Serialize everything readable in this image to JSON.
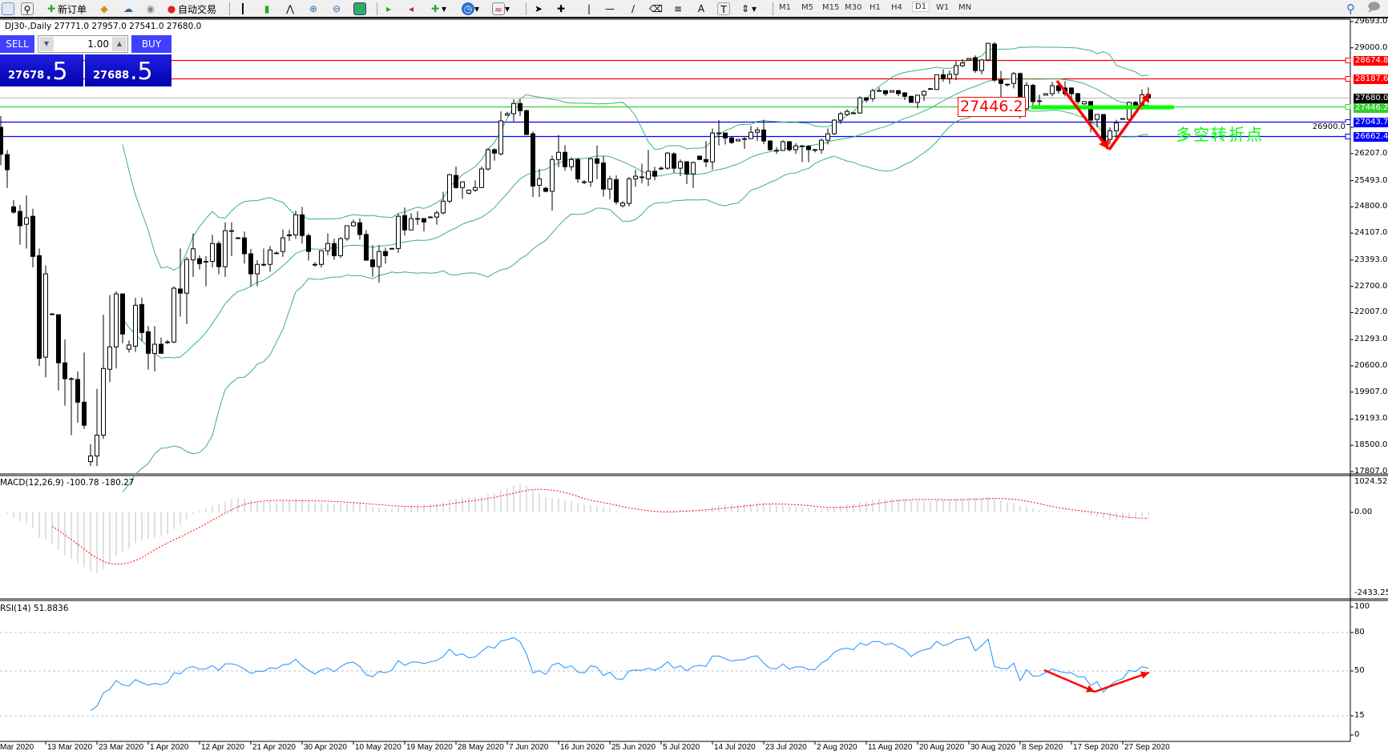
{
  "toolbar": {
    "new_order_label": "新订单",
    "auto_trade_label": "自动交易",
    "timeframes": [
      "M1",
      "M5",
      "M15",
      "M30",
      "H1",
      "H4",
      "D1",
      "W1",
      "MN"
    ],
    "active_timeframe": "D1"
  },
  "chart": {
    "header": "DJ30-,Daily  27771.0 27957.0 27541.0 27680.0",
    "macd_label": "MACD(12,26,9) -100.78 -180.27",
    "rsi_label": "RSI(14) 51.8836",
    "annotation_text": "多空转折点",
    "annotation_price": "27446.2",
    "annotation_color": "#00ff00"
  },
  "trade_panel": {
    "sell_label": "SELL",
    "buy_label": "BUY",
    "volume": "1.00",
    "sell_price_main": "27678",
    "sell_price_big": ".5",
    "buy_price_main": "27688",
    "buy_price_big": ".5"
  },
  "chart_data": {
    "type": "candlestick",
    "symbol": "DJ30-",
    "period": "Daily",
    "price_axis_ticks": [
      "29693.0",
      "29000.0",
      "26900.0",
      "26207.0",
      "25493.0",
      "24800.0",
      "24107.0",
      "23393.0",
      "22700.0",
      "22007.0",
      "21293.0",
      "20600.0",
      "19907.0",
      "19193.0",
      "18500.0",
      "17807.0"
    ],
    "ylim": [
      17807.0,
      29693.0
    ],
    "date_labels": [
      "Mar 2020",
      "13 Mar 2020",
      "23 Mar 2020",
      "1 Apr 2020",
      "12 Apr 2020",
      "21 Apr 2020",
      "30 Apr 2020",
      "10 May 2020",
      "19 May 2020",
      "28 May 2020",
      "7 Jun 2020",
      "16 Jun 2020",
      "25 Jun 2020",
      "5 Jul 2020",
      "14 Jul 2020",
      "23 Jul 2020",
      "2 Aug 2020",
      "11 Aug 2020",
      "20 Aug 2020",
      "30 Aug 2020",
      "8 Sep 2020",
      "17 Sep 2020",
      "27 Sep 2020"
    ],
    "ohlc": [
      [
        26900,
        27200,
        25900,
        26190
      ],
      [
        26180,
        26300,
        25300,
        25780
      ],
      [
        24800,
        24980,
        24620,
        24660
      ],
      [
        24680,
        24850,
        23800,
        24300
      ],
      [
        24340,
        25100,
        23700,
        24510
      ],
      [
        24550,
        24750,
        23200,
        23490
      ],
      [
        23510,
        23700,
        20600,
        20800
      ],
      [
        20830,
        23250,
        20300,
        23030
      ],
      [
        21970,
        22000,
        21940,
        21970
      ],
      [
        21950,
        21950,
        19950,
        20680
      ],
      [
        20680,
        21300,
        19550,
        20260
      ],
      [
        20260,
        20300,
        18770,
        20260
      ],
      [
        20240,
        20450,
        19100,
        19640
      ],
      [
        19640,
        20950,
        18930,
        19030
      ],
      [
        18070,
        18530,
        17950,
        18220
      ],
      [
        18220,
        19990,
        17950,
        18770
      ],
      [
        18770,
        21950,
        18670,
        20530
      ],
      [
        20510,
        22470,
        20170,
        21100
      ],
      [
        21100,
        22570,
        20530,
        22500
      ],
      [
        22500,
        22500,
        21200,
        21440
      ],
      [
        21040,
        21270,
        20950,
        21150
      ],
      [
        21120,
        22400,
        20970,
        22200
      ],
      [
        22220,
        22400,
        21250,
        21480
      ],
      [
        21500,
        21650,
        20500,
        20930
      ],
      [
        20930,
        21650,
        20450,
        21170
      ],
      [
        21170,
        21350,
        20930,
        20930
      ],
      [
        21230,
        21280,
        21180,
        21230
      ],
      [
        21230,
        22700,
        21200,
        22650
      ],
      [
        22630,
        23700,
        21900,
        22520
      ],
      [
        22520,
        23480,
        21700,
        23410
      ],
      [
        23400,
        24100,
        22950,
        23690
      ],
      [
        23430,
        23520,
        23150,
        23300
      ],
      [
        23360,
        23500,
        22700,
        23360
      ],
      [
        23360,
        24060,
        23200,
        23830
      ],
      [
        23830,
        23900,
        23020,
        23220
      ],
      [
        23220,
        24390,
        22950,
        24170
      ],
      [
        24170,
        24390,
        23500,
        24170
      ],
      [
        23980,
        24000,
        23950,
        23980
      ],
      [
        23980,
        24150,
        23300,
        23560
      ],
      [
        23560,
        23690,
        22700,
        23030
      ],
      [
        23030,
        23390,
        22700,
        23280
      ],
      [
        23280,
        23700,
        23230,
        23280
      ],
      [
        23280,
        23760,
        23080,
        23660
      ],
      [
        23580,
        23620,
        23560,
        23580
      ],
      [
        23620,
        24200,
        23480,
        23980
      ],
      [
        24040,
        24200,
        23900,
        24060
      ],
      [
        24060,
        24700,
        23950,
        24590
      ],
      [
        24590,
        24800,
        23830,
        24040
      ],
      [
        24040,
        24100,
        23380,
        23620
      ],
      [
        23280,
        23340,
        23220,
        23280
      ],
      [
        23280,
        23650,
        23200,
        23640
      ],
      [
        23640,
        24100,
        23520,
        23830
      ],
      [
        23830,
        23960,
        23400,
        23510
      ],
      [
        23510,
        24000,
        23450,
        23960
      ],
      [
        23960,
        24310,
        23900,
        24300
      ],
      [
        24300,
        24460,
        24280,
        24390
      ],
      [
        24380,
        24500,
        23930,
        24070
      ],
      [
        24070,
        24180,
        23380,
        23390
      ],
      [
        23400,
        23790,
        22950,
        23220
      ],
      [
        23220,
        23790,
        22800,
        23620
      ],
      [
        23620,
        23720,
        23300,
        23510
      ],
      [
        23700,
        23720,
        23680,
        23700
      ],
      [
        23700,
        24620,
        23580,
        24550
      ],
      [
        24570,
        24780,
        24040,
        24190
      ],
      [
        24190,
        24630,
        24190,
        24490
      ],
      [
        24490,
        24680,
        24320,
        24490
      ],
      [
        24490,
        24490,
        24150,
        24400
      ],
      [
        24530,
        24560,
        24510,
        24530
      ],
      [
        24530,
        24700,
        24330,
        24640
      ],
      [
        24640,
        25200,
        24600,
        24950
      ],
      [
        24950,
        25670,
        24900,
        25650
      ],
      [
        25630,
        25860,
        25280,
        25310
      ],
      [
        25310,
        25460,
        25010,
        25460
      ],
      [
        25160,
        25260,
        25130,
        25240
      ],
      [
        25240,
        25500,
        25200,
        25310
      ],
      [
        25310,
        25870,
        25300,
        25800
      ],
      [
        25800,
        26350,
        25760,
        26310
      ],
      [
        26310,
        26350,
        26020,
        26220
      ],
      [
        26200,
        27320,
        26160,
        27070
      ],
      [
        27220,
        27310,
        27200,
        27260
      ],
      [
        27260,
        27640,
        27060,
        27530
      ],
      [
        27530,
        27640,
        27200,
        27340
      ],
      [
        27340,
        27370,
        26700,
        26710
      ],
      [
        26730,
        26790,
        25060,
        25350
      ],
      [
        25370,
        25800,
        25060,
        25540
      ],
      [
        25290,
        25330,
        25180,
        25210
      ],
      [
        25210,
        26150,
        24700,
        26050
      ],
      [
        26050,
        26700,
        25850,
        26240
      ],
      [
        26240,
        26430,
        25760,
        25860
      ],
      [
        25860,
        26100,
        25760,
        26050
      ],
      [
        26050,
        26100,
        25440,
        25540
      ],
      [
        25460,
        25510,
        25400,
        25460
      ],
      [
        25460,
        26100,
        25330,
        26070
      ],
      [
        26070,
        26420,
        25530,
        25950
      ],
      [
        25960,
        26140,
        25070,
        25270
      ],
      [
        25270,
        25620,
        25000,
        25540
      ],
      [
        25520,
        25630,
        24860,
        24930
      ],
      [
        24830,
        24950,
        24780,
        24900
      ],
      [
        24890,
        25590,
        24810,
        25540
      ],
      [
        25540,
        25780,
        25330,
        25610
      ],
      [
        25590,
        25940,
        25420,
        25590
      ],
      [
        25540,
        26300,
        25350,
        25740
      ],
      [
        25740,
        25860,
        25500,
        25610
      ],
      [
        25820,
        25870,
        25770,
        25820
      ],
      [
        25820,
        26250,
        25780,
        26220
      ],
      [
        26200,
        26240,
        25700,
        25820
      ],
      [
        25820,
        26050,
        25610,
        25990
      ],
      [
        25990,
        26010,
        25400,
        25670
      ],
      [
        25670,
        26000,
        25300,
        25970
      ],
      [
        26140,
        26140,
        26050,
        26050
      ],
      [
        26050,
        26540,
        25850,
        25990
      ],
      [
        25990,
        26870,
        25780,
        26750
      ],
      [
        26750,
        27090,
        26420,
        26750
      ],
      [
        26750,
        26760,
        26450,
        26620
      ],
      [
        26620,
        26660,
        26460,
        26500
      ],
      [
        26540,
        26580,
        26540,
        26580
      ],
      [
        26600,
        26640,
        26330,
        26600
      ],
      [
        26600,
        26940,
        26590,
        26770
      ],
      [
        26770,
        26900,
        26540,
        26830
      ],
      [
        26830,
        27100,
        26460,
        26540
      ],
      [
        26540,
        26560,
        26280,
        26310
      ],
      [
        26290,
        26380,
        26200,
        26290
      ],
      [
        26290,
        26560,
        26280,
        26520
      ],
      [
        26520,
        26540,
        26260,
        26310
      ],
      [
        26310,
        26480,
        26200,
        26410
      ],
      [
        26410,
        26430,
        25980,
        26410
      ],
      [
        26400,
        26430,
        25980,
        26310
      ],
      [
        26310,
        26330,
        26240,
        26310
      ],
      [
        26310,
        26600,
        26200,
        26560
      ],
      [
        26560,
        26870,
        26450,
        26730
      ],
      [
        26730,
        27120,
        26700,
        27090
      ],
      [
        27090,
        27310,
        26990,
        27260
      ],
      [
        27240,
        27380,
        27200,
        27320
      ],
      [
        27280,
        27300,
        27270,
        27280
      ],
      [
        27280,
        27720,
        27260,
        27680
      ],
      [
        27680,
        27700,
        27560,
        27620
      ],
      [
        27660,
        27920,
        27580,
        27870
      ],
      [
        27870,
        27950,
        27850,
        27870
      ],
      [
        27870,
        27880,
        27730,
        27790
      ],
      [
        27830,
        27870,
        27830,
        27870
      ],
      [
        27870,
        27890,
        27730,
        27790
      ],
      [
        27810,
        27830,
        27620,
        27720
      ],
      [
        27720,
        27730,
        27560,
        27560
      ],
      [
        27560,
        27750,
        27400,
        27750
      ],
      [
        27750,
        27880,
        27600,
        27850
      ],
      [
        27920,
        27940,
        27900,
        27920
      ],
      [
        27900,
        28290,
        27890,
        28290
      ],
      [
        28290,
        28430,
        28110,
        28190
      ],
      [
        28190,
        28400,
        28050,
        28300
      ],
      [
        28300,
        28650,
        28150,
        28530
      ],
      [
        28530,
        28700,
        28490,
        28600
      ],
      [
        28680,
        28720,
        28680,
        28720
      ],
      [
        28740,
        28800,
        28340,
        28400
      ],
      [
        28400,
        28700,
        28300,
        28680
      ],
      [
        28680,
        29120,
        28650,
        29120
      ],
      [
        29100,
        29150,
        28100,
        28150
      ],
      [
        28150,
        28390,
        27300,
        28060
      ],
      [
        28040,
        28050,
        27980,
        28040
      ],
      [
        28060,
        28360,
        27930,
        28320
      ],
      [
        28320,
        28350,
        27130,
        27390
      ],
      [
        27390,
        28100,
        27350,
        28010
      ],
      [
        28010,
        28050,
        27450,
        27580
      ],
      [
        27600,
        27760,
        27400,
        27600
      ],
      [
        27750,
        27800,
        27750,
        27790
      ],
      [
        27790,
        28100,
        27720,
        28000
      ],
      [
        28000,
        28100,
        27790,
        27870
      ],
      [
        27940,
        28120,
        27720,
        27790
      ],
      [
        27940,
        27960,
        27600,
        27790
      ],
      [
        27790,
        27810,
        27500,
        27580
      ],
      [
        27520,
        27590,
        27500,
        27580
      ],
      [
        27580,
        27600,
        26770,
        27090
      ],
      [
        27110,
        27240,
        26900,
        27240
      ],
      [
        27240,
        27250,
        26520,
        26520
      ],
      [
        26580,
        26900,
        26450,
        26810
      ],
      [
        26810,
        27100,
        26600,
        27020
      ],
      [
        27130,
        27140,
        27120,
        27130
      ],
      [
        27110,
        27580,
        27030,
        27560
      ],
      [
        27560,
        27600,
        27400,
        27490
      ],
      [
        27490,
        27900,
        27360,
        27760
      ],
      [
        27771,
        27957,
        27541,
        27680
      ]
    ],
    "indicators": {
      "bollinger": {
        "period": 20,
        "deviation": 2,
        "color": "#3cb371"
      },
      "macd": {
        "fast": 12,
        "slow": 26,
        "signal": 9,
        "axis_ticks": [
          "1024.52",
          "0.00",
          "-2433.25"
        ],
        "ylim": [
          -2433.25,
          1024.52
        ],
        "histogram_color": "#c0c0c0",
        "signal_color": "#ff0000"
      },
      "rsi": {
        "period": 14,
        "axis_ticks": [
          "100",
          "80",
          "50",
          "15",
          "0"
        ],
        "levels": [
          80,
          50,
          15
        ],
        "color": "#1e90ff"
      }
    },
    "horizontal_lines": [
      {
        "price": 28674.8,
        "label": "28674.8",
        "color": "#ff0000"
      },
      {
        "price": 28187.6,
        "label": "28187.6",
        "color": "#ff0000"
      },
      {
        "price": 27680.0,
        "label": "27680.0",
        "color": "#000000",
        "line_color": "#c0c0c0"
      },
      {
        "price": 27446.2,
        "label": "27446.2",
        "color": "#32cd32"
      },
      {
        "price": 27043.7,
        "label": "27043.7",
        "color": "#0000ff"
      },
      {
        "price": 26662.4,
        "label": "26662.4",
        "color": "#0000ff"
      }
    ]
  }
}
